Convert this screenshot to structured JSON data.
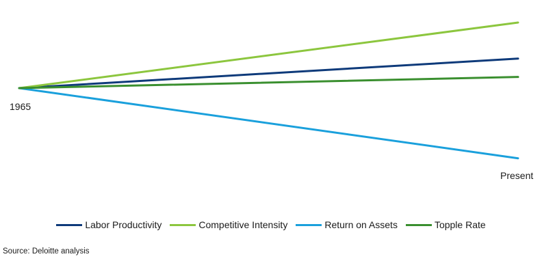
{
  "chart_data": {
    "type": "line",
    "title": "",
    "xlabel": "",
    "ylabel": "",
    "x_labels": {
      "start": "1965",
      "end": "Present"
    },
    "x": [
      0,
      100
    ],
    "ylim": [
      -1,
      1
    ],
    "grid": false,
    "legend": "bottom",
    "series": [
      {
        "name": "Labor Productivity",
        "color": "#0e3a7a",
        "values": [
          0,
          0.45
        ]
      },
      {
        "name": "Competitive Intensity",
        "color": "#8cc63e",
        "values": [
          0,
          1.0
        ]
      },
      {
        "name": "Return on Assets",
        "color": "#1aa0dc",
        "values": [
          0,
          -1.07
        ]
      },
      {
        "name": "Topple Rate",
        "color": "#3a8f2f",
        "values": [
          0,
          0.17
        ]
      }
    ]
  },
  "source": "Source: Deloitte analysis"
}
